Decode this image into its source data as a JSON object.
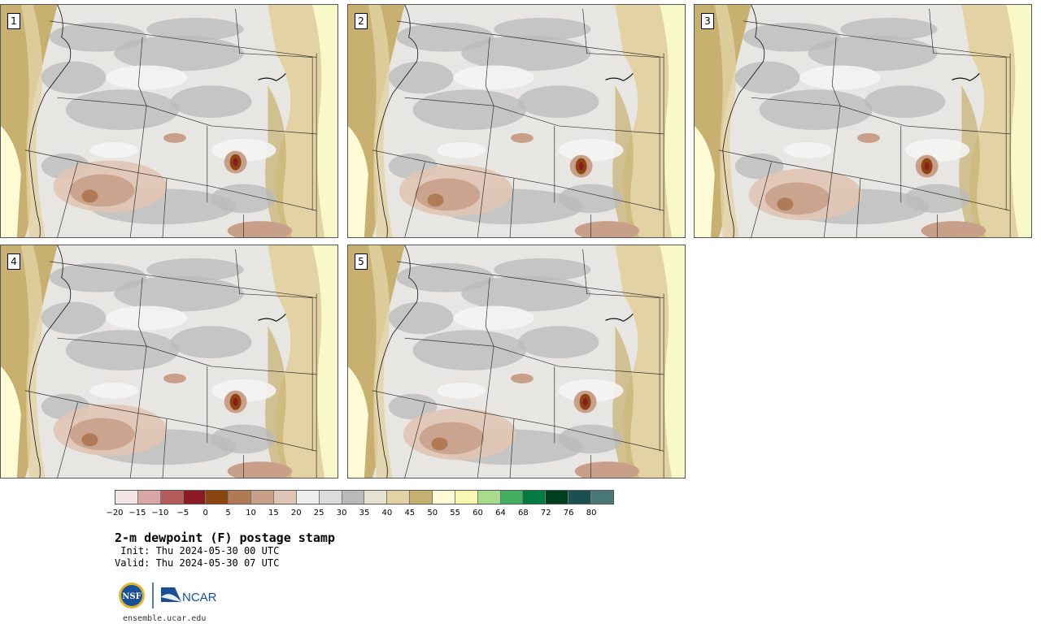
{
  "panels": [
    {
      "label": "1"
    },
    {
      "label": "2"
    },
    {
      "label": "3"
    },
    {
      "label": "4"
    },
    {
      "label": "5"
    }
  ],
  "colorbar": {
    "colors": [
      "#f4e6e6",
      "#d9a6a6",
      "#b45c5c",
      "#8b1a22",
      "#8b4513",
      "#b07a55",
      "#c8a08a",
      "#e0c4b4",
      "#efefef",
      "#dcdcdc",
      "#b9b9b9",
      "#e6e2d2",
      "#e2d2a4",
      "#c8b070",
      "#fffbd6",
      "#f8f8b0",
      "#a6dc8c",
      "#42b060",
      "#007a40",
      "#003e20",
      "#1a5050",
      "#4a7878"
    ],
    "tick_labels": [
      "−20",
      "−15",
      "−10",
      "−5",
      "0",
      "5",
      "10",
      "15",
      "20",
      "25",
      "30",
      "35",
      "40",
      "45",
      "50",
      "55",
      "60",
      "64",
      "68",
      "72",
      "76",
      "80"
    ]
  },
  "title": "2-m dewpoint (F) postage stamp",
  "init": " Init: Thu 2024-05-30 00 UTC",
  "valid": "Valid: Thu 2024-05-30 07 UTC",
  "logos": {
    "nsf": "NSF",
    "ncar": "NCAR"
  },
  "site": "ensemble.ucar.edu"
}
